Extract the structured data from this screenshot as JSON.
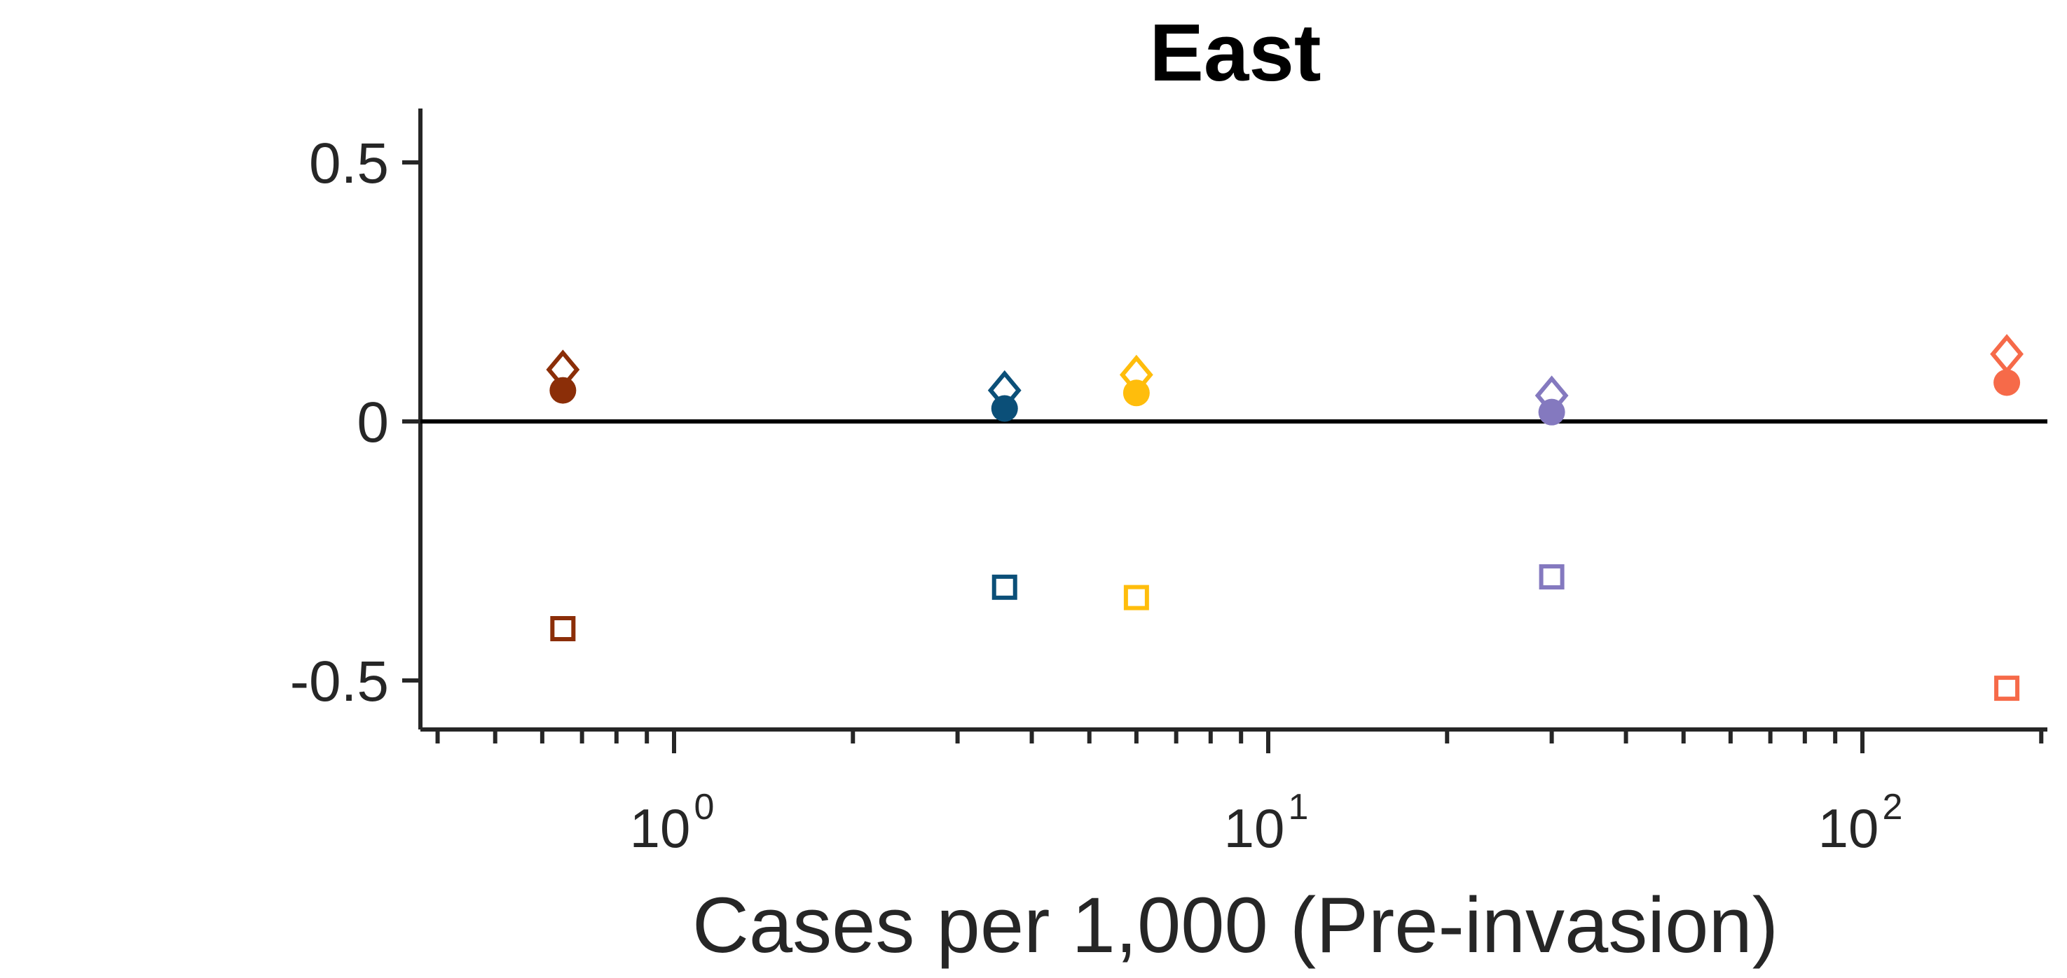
{
  "chart_data": {
    "type": "scatter",
    "title": "East",
    "xlabel": "Cases per 1,000 (Pre-invasion)",
    "ylabel": "",
    "xscale": "log",
    "xlim": [
      0.4,
      200
    ],
    "ylim": [
      -0.6,
      0.6
    ],
    "yticks": [
      0.5,
      0,
      -0.5
    ],
    "ytick_labels": [
      "0.5",
      "0",
      "-0.5"
    ],
    "xticks": [
      {
        "value": 1,
        "base": "10",
        "exp": "0"
      },
      {
        "value": 10,
        "base": "10",
        "exp": "1"
      },
      {
        "value": 100,
        "base": "10",
        "exp": "2"
      }
    ],
    "reference_line_y": 0,
    "grid": false,
    "legend": "none",
    "marker_styles": {
      "diamond": "open diamond",
      "circle": "filled circle",
      "square": "open square"
    },
    "series": [
      {
        "color": "#8B2E08",
        "x": 0.65,
        "diamond": 0.1,
        "circle": 0.06,
        "square": -0.4
      },
      {
        "color": "#0B4F78",
        "x": 3.6,
        "diamond": 0.06,
        "circle": 0.025,
        "square": -0.32
      },
      {
        "color": "#FFBD0C",
        "x": 6.0,
        "diamond": 0.09,
        "circle": 0.055,
        "square": -0.34
      },
      {
        "color": "#8479BF",
        "x": 30,
        "diamond": 0.05,
        "circle": 0.018,
        "square": -0.3
      },
      {
        "color": "#F66A49",
        "x": 175,
        "diamond": 0.13,
        "circle": 0.075,
        "square": -0.515
      }
    ]
  }
}
